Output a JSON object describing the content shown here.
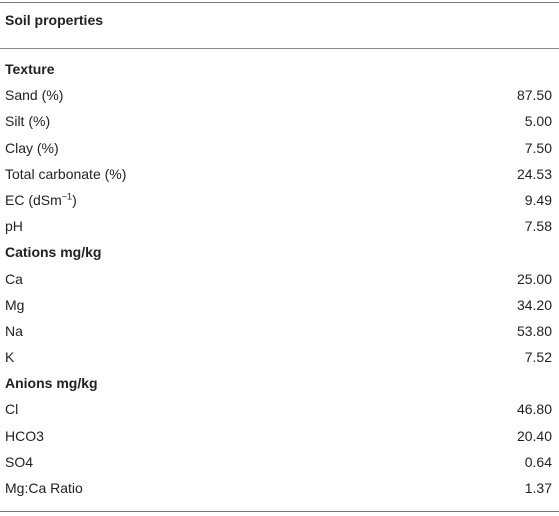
{
  "table": {
    "header": "Soil properties",
    "rows": [
      {
        "label": "Texture",
        "value": "",
        "section": true
      },
      {
        "label": "Sand (%)",
        "value": "87.50"
      },
      {
        "label": "Silt (%)",
        "value": "5.00"
      },
      {
        "label": "Clay (%)",
        "value": "7.50"
      },
      {
        "label": "Total carbonate (%)",
        "value": "24.53"
      },
      {
        "label": "EC (dSm",
        "label_sup": "−1",
        "label_tail": ")",
        "value": "9.49"
      },
      {
        "label": "pH",
        "value": "7.58"
      },
      {
        "label": "Cations mg/kg",
        "value": "",
        "section": true
      },
      {
        "label": "Ca",
        "value": "25.00"
      },
      {
        "label": "Mg",
        "value": "34.20"
      },
      {
        "label": "Na",
        "value": "53.80"
      },
      {
        "label": "K",
        "value": "7.52"
      },
      {
        "label": "Anions mg/kg",
        "value": "",
        "section": true
      },
      {
        "label": "Cl",
        "value": "46.80"
      },
      {
        "label": "HCO3",
        "value": "20.40"
      },
      {
        "label": "SO4",
        "value": "0.64"
      },
      {
        "label": "Mg:Ca Ratio",
        "value": "1.37"
      }
    ]
  }
}
